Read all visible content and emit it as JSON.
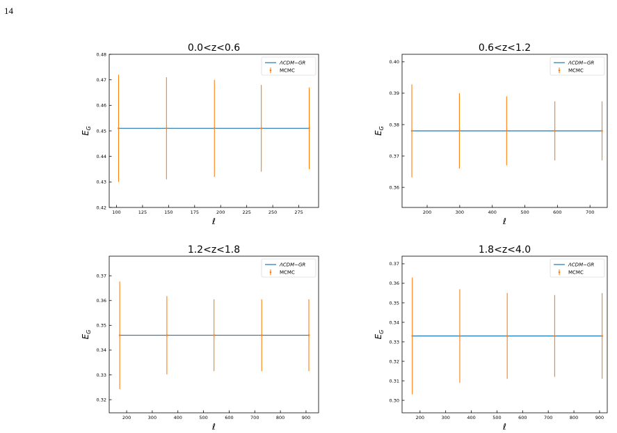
{
  "page_number": "14",
  "chart_data": [
    {
      "type": "errorbar",
      "title": "0.0<z<0.6",
      "xlabel": "ℓ",
      "ylabel": {
        "text": "E",
        "subscript": "G"
      },
      "x": [
        102,
        148,
        194,
        239,
        285
      ],
      "series": [
        {
          "name": "ΛCDM−GR",
          "kind": "line",
          "color": "#1f77b4",
          "values": [
            0.451,
            0.451,
            0.451,
            0.451,
            0.451
          ]
        },
        {
          "name": "MCMC",
          "kind": "errorbar",
          "color": "#ff7f0e",
          "values": [
            0.451,
            0.451,
            0.451,
            0.451,
            0.451
          ],
          "errors": [
            0.021,
            0.02,
            0.019,
            0.017,
            0.016
          ]
        }
      ],
      "xlim": [
        93,
        294
      ],
      "xticks": [
        100,
        125,
        150,
        175,
        200,
        225,
        250,
        275
      ],
      "ylim": [
        0.42,
        0.48
      ],
      "yticks": [
        0.42,
        0.43,
        0.44,
        0.45,
        0.46,
        0.47,
        0.48
      ],
      "legend": "upper right"
    },
    {
      "type": "errorbar",
      "title": "0.6<z<1.2",
      "xlabel": "ℓ",
      "ylabel": {
        "text": "E",
        "subscript": "G"
      },
      "x": [
        153,
        299,
        444,
        592,
        737
      ],
      "series": [
        {
          "name": "ΛCDM−GR",
          "kind": "line",
          "color": "#1f77b4",
          "values": [
            0.378,
            0.378,
            0.378,
            0.378,
            0.378
          ]
        },
        {
          "name": "MCMC",
          "kind": "errorbar",
          "color": "#ff7f0e",
          "values": [
            0.378,
            0.378,
            0.378,
            0.378,
            0.378
          ],
          "errors": [
            0.0148,
            0.012,
            0.011,
            0.0094,
            0.0094
          ]
        }
      ],
      "xlim": [
        123,
        753
      ],
      "xticks": [
        200,
        300,
        400,
        500,
        600,
        700
      ],
      "ylim": [
        0.3536,
        0.4024
      ],
      "yticks": [
        0.36,
        0.37,
        0.38,
        0.39,
        {
          "value": 0.4,
          "label": "0.40"
        }
      ],
      "legend": "upper right"
    },
    {
      "type": "errorbar",
      "title": "1.2<z<1.8",
      "xlabel": "ℓ",
      "ylabel": {
        "text": "E",
        "subscript": "G"
      },
      "x": [
        173,
        357,
        541,
        727,
        911
      ],
      "series": [
        {
          "name": "ΛCDM−GR",
          "kind": "line",
          "color": "#1f77b4",
          "values": [
            0.346,
            0.346,
            0.346,
            0.346,
            0.346
          ]
        },
        {
          "name": "MCMC",
          "kind": "errorbar",
          "color": "#ff7f0e",
          "values": [
            0.346,
            0.346,
            0.346,
            0.346,
            0.346
          ],
          "errors": [
            0.0217,
            0.0158,
            0.0145,
            0.0145,
            0.0145
          ]
        }
      ],
      "xlim": [
        132,
        949
      ],
      "xticks": [
        200,
        300,
        400,
        500,
        600,
        700,
        800,
        900
      ],
      "ylim": [
        0.3147,
        0.3779
      ],
      "yticks": [
        0.32,
        0.33,
        0.34,
        0.35,
        0.36,
        0.37
      ],
      "legend": "upper right"
    },
    {
      "type": "errorbar",
      "title": "1.8<z<4.0",
      "xlabel": "ℓ",
      "ylabel": {
        "text": "E",
        "subscript": "G"
      },
      "x": [
        170,
        355,
        540,
        725,
        910
      ],
      "series": [
        {
          "name": "ΛCDM−GR",
          "kind": "line",
          "color": "#1f77b4",
          "values": [
            0.333,
            0.333,
            0.333,
            0.333,
            0.333
          ]
        },
        {
          "name": "MCMC",
          "kind": "errorbar",
          "color": "#ff7f0e",
          "values": [
            0.333,
            0.333,
            0.333,
            0.333,
            0.333
          ],
          "errors": [
            0.03,
            0.024,
            0.022,
            0.021,
            0.022
          ]
        }
      ],
      "xlim": [
        130,
        930
      ],
      "xticks": [
        200,
        300,
        400,
        500,
        600,
        700,
        800,
        900
      ],
      "ylim": [
        0.2936,
        0.3739
      ],
      "yticks": [
        {
          "value": 0.3,
          "label": "0.30"
        },
        0.31,
        0.32,
        0.33,
        0.34,
        0.35,
        0.36,
        0.37
      ],
      "legend": "upper right"
    }
  ]
}
